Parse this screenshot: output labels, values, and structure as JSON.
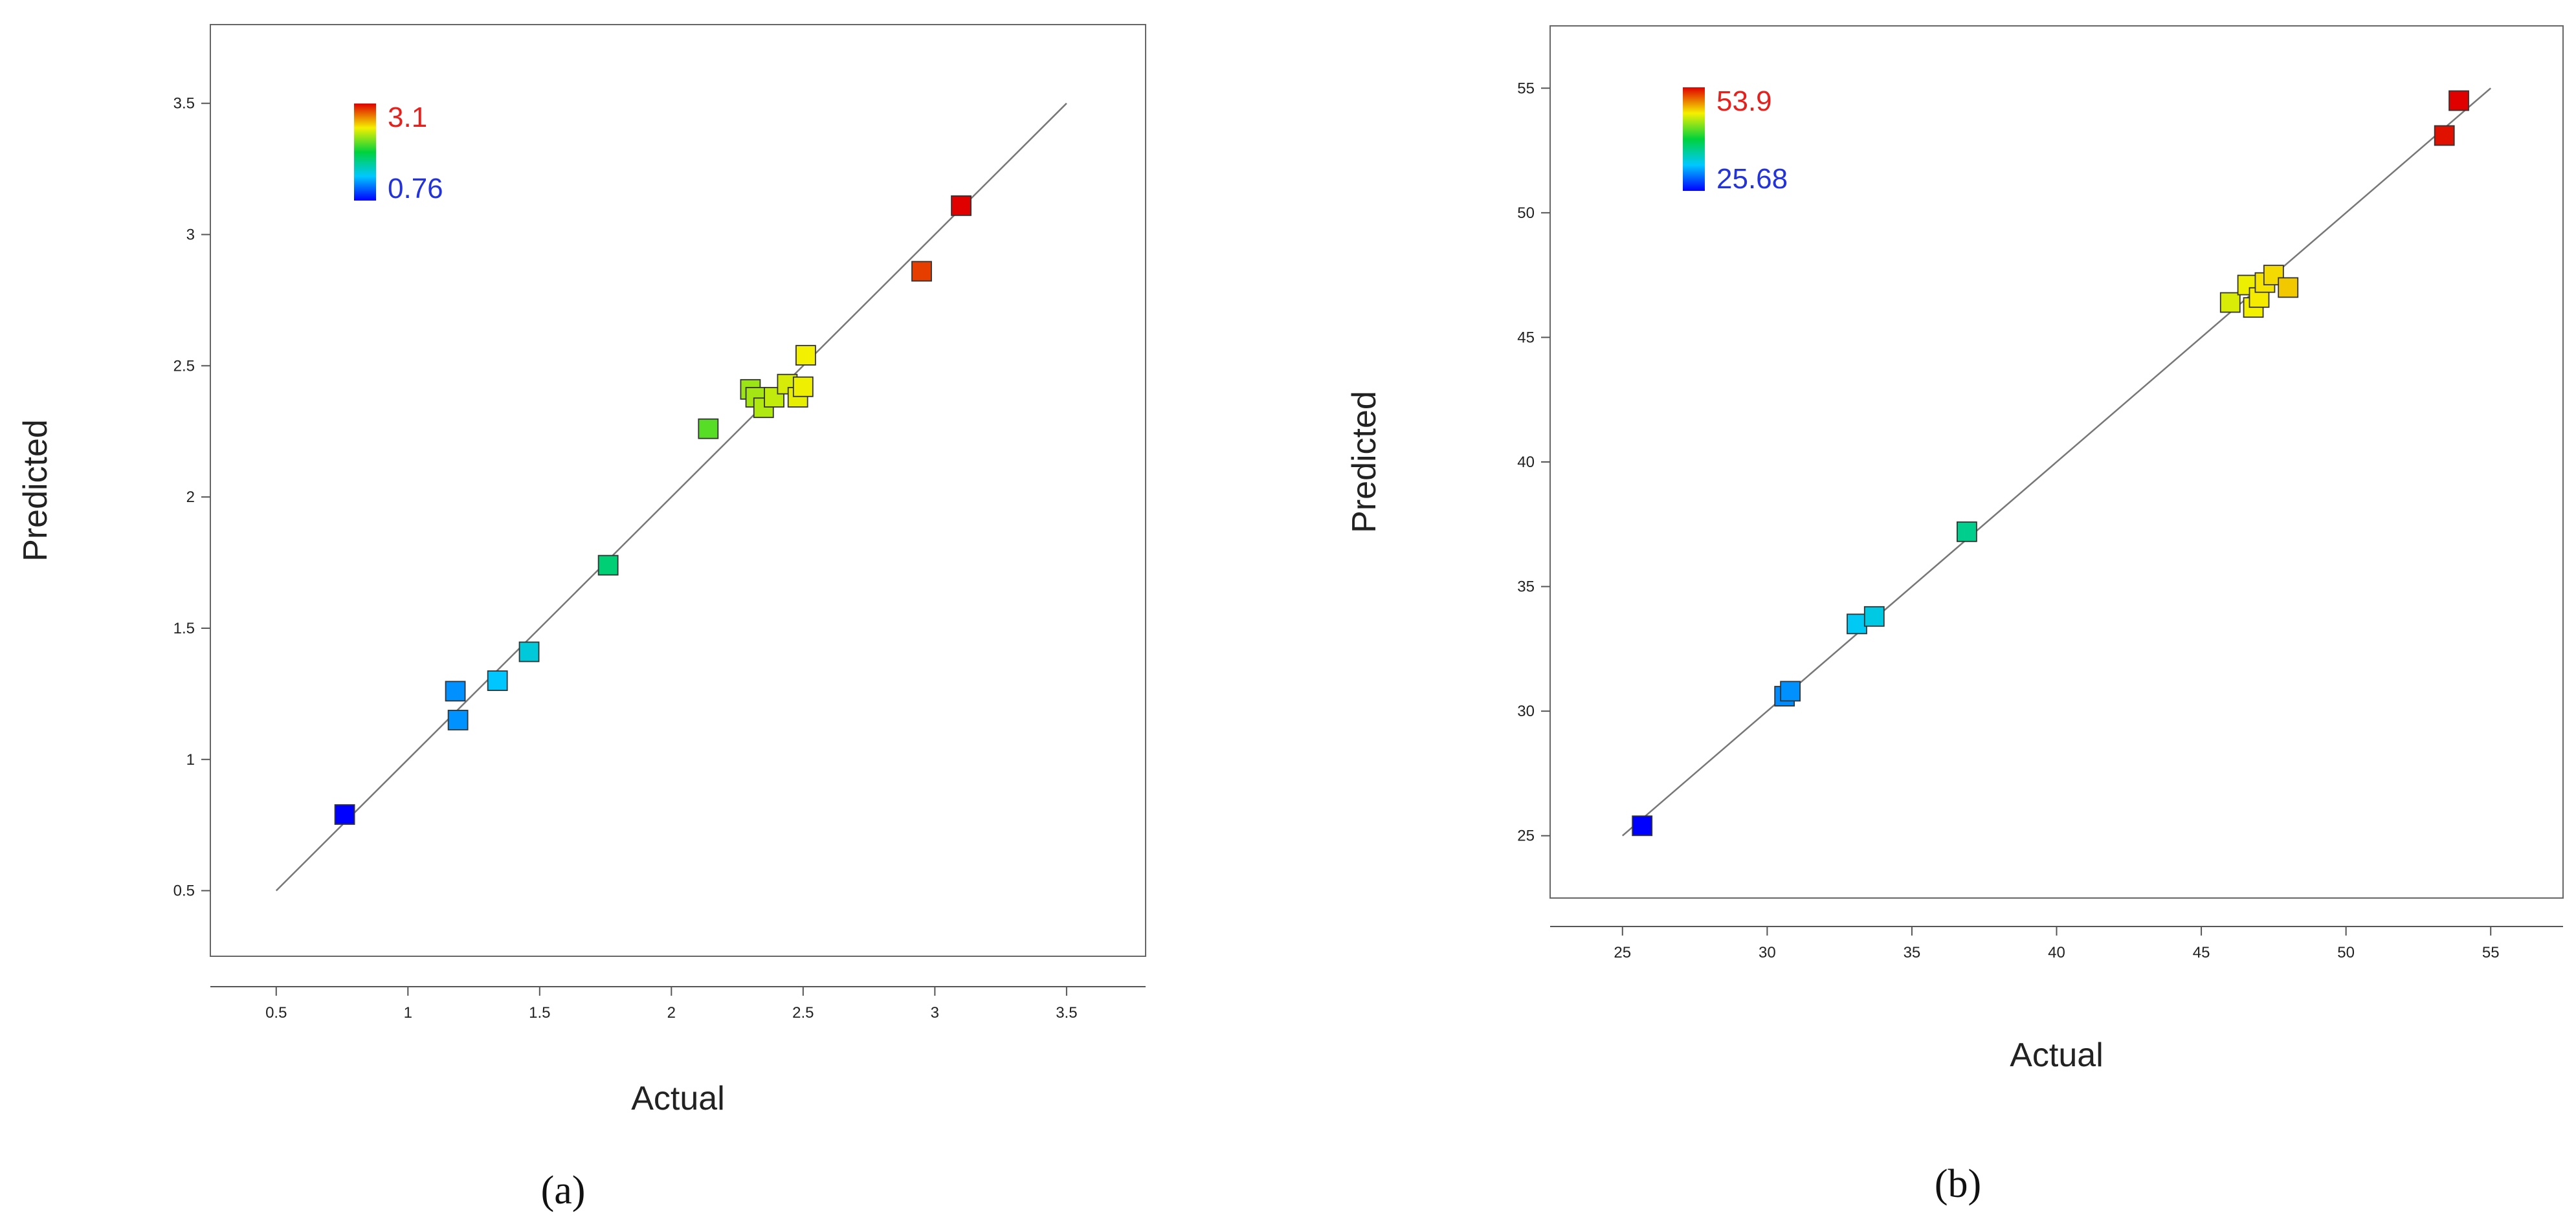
{
  "chart_data": [
    {
      "type": "scatter",
      "panel_label": "(a)",
      "xlabel": "Actual",
      "ylabel": "Predicted",
      "xlim": [
        0.25,
        3.8
      ],
      "ylim": [
        0.25,
        3.8
      ],
      "xticks": [
        0.5,
        1,
        1.5,
        2,
        2.5,
        3,
        3.5
      ],
      "xtick_labels": [
        "0.5",
        "1",
        "1.5",
        "2",
        "2.5",
        "3",
        "3.5"
      ],
      "yticks": [
        0.5,
        1,
        1.5,
        2,
        2.5,
        3,
        3.5
      ],
      "ytick_labels": [
        "0.5",
        "1",
        "1.5",
        "2",
        "2.5",
        "3",
        "3.5"
      ],
      "reference_line": [
        0.5,
        3.5
      ],
      "colorbar": {
        "max_label": "3.1",
        "min_label": "0.76",
        "max": 3.1,
        "min": 0.76
      },
      "points": [
        {
          "x": 0.76,
          "y": 0.79
        },
        {
          "x": 1.18,
          "y": 1.26
        },
        {
          "x": 1.19,
          "y": 1.15
        },
        {
          "x": 1.34,
          "y": 1.3
        },
        {
          "x": 1.46,
          "y": 1.41
        },
        {
          "x": 1.76,
          "y": 1.74
        },
        {
          "x": 2.14,
          "y": 2.26
        },
        {
          "x": 2.3,
          "y": 2.41
        },
        {
          "x": 2.32,
          "y": 2.38
        },
        {
          "x": 2.35,
          "y": 2.34
        },
        {
          "x": 2.39,
          "y": 2.38
        },
        {
          "x": 2.44,
          "y": 2.43
        },
        {
          "x": 2.48,
          "y": 2.38
        },
        {
          "x": 2.5,
          "y": 2.42
        },
        {
          "x": 2.51,
          "y": 2.54
        },
        {
          "x": 2.95,
          "y": 2.86
        },
        {
          "x": 3.1,
          "y": 3.11
        }
      ]
    },
    {
      "type": "scatter",
      "panel_label": "(b)",
      "xlabel": "Actual",
      "ylabel": "Predicted",
      "xlim": [
        22.5,
        57.5
      ],
      "ylim": [
        22.5,
        57.5
      ],
      "xticks": [
        25,
        30,
        35,
        40,
        45,
        50,
        55
      ],
      "xtick_labels": [
        "25",
        "30",
        "35",
        "40",
        "45",
        "50",
        "55"
      ],
      "yticks": [
        25,
        30,
        35,
        40,
        45,
        50,
        55
      ],
      "ytick_labels": [
        "25",
        "30",
        "35",
        "40",
        "45",
        "50",
        "55"
      ],
      "reference_line": [
        25,
        55
      ],
      "colorbar": {
        "max_label": "53.9",
        "min_label": "25.68",
        "max": 53.9,
        "min": 25.68
      },
      "points": [
        {
          "x": 25.68,
          "y": 25.4
        },
        {
          "x": 30.6,
          "y": 30.6
        },
        {
          "x": 30.8,
          "y": 30.8
        },
        {
          "x": 33.1,
          "y": 33.5
        },
        {
          "x": 33.7,
          "y": 33.8
        },
        {
          "x": 36.9,
          "y": 37.2
        },
        {
          "x": 46.0,
          "y": 46.4
        },
        {
          "x": 46.6,
          "y": 47.1
        },
        {
          "x": 46.8,
          "y": 46.2
        },
        {
          "x": 47.0,
          "y": 46.6
        },
        {
          "x": 47.2,
          "y": 47.2
        },
        {
          "x": 47.5,
          "y": 47.5
        },
        {
          "x": 48.0,
          "y": 47.0
        },
        {
          "x": 53.4,
          "y": 53.1
        },
        {
          "x": 53.9,
          "y": 54.5
        }
      ]
    }
  ]
}
